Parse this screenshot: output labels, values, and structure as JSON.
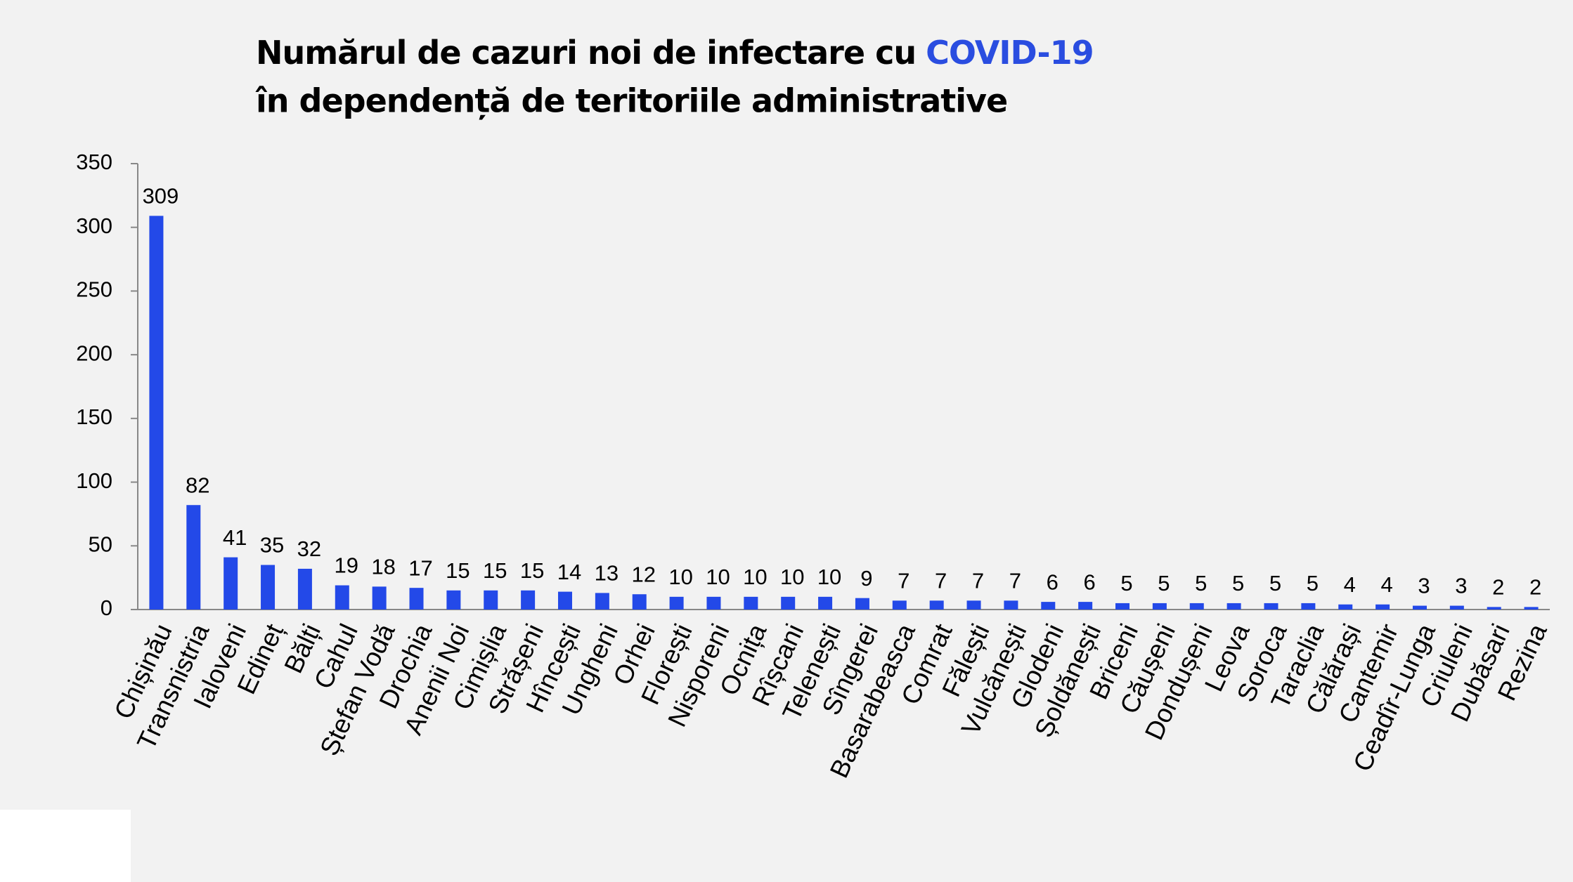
{
  "chart_data": {
    "type": "bar",
    "title": {
      "text": "Numărul de cazuri noi de infectare cu",
      "highlight": "COVID-19",
      "highlight_color": "#2a4de0"
    },
    "subtitle": "în dependență de teritoriile administrative",
    "categories": [
      "Chișinău",
      "Transnistria",
      "Ialoveni",
      "Edineț",
      "Bălți",
      "Cahul",
      "Ștefan Vodă",
      "Drochia",
      "Anenii Noi",
      "Cimișlia",
      "Strășeni",
      "Hîncești",
      "Ungheni",
      "Orhei",
      "Florești",
      "Nisporeni",
      "Ocnița",
      "Rîșcani",
      "Telenești",
      "Sîngerei",
      "Basarabeasca",
      "Comrat",
      "Fălești",
      "Vulcănești",
      "Glodeni",
      "Șoldănești",
      "Briceni",
      "Căușeni",
      "Dondușeni",
      "Leova",
      "Soroca",
      "Taraclia",
      "Călărași",
      "Cantemir",
      "Ceadîr-Lunga",
      "Criuleni",
      "Dubăsari",
      "Rezina"
    ],
    "values": [
      309,
      82,
      41,
      35,
      32,
      19,
      18,
      17,
      15,
      15,
      15,
      14,
      13,
      12,
      10,
      10,
      10,
      10,
      10,
      9,
      7,
      7,
      7,
      7,
      6,
      6,
      5,
      5,
      5,
      5,
      5,
      5,
      4,
      4,
      3,
      3,
      2,
      2
    ],
    "color": "#2349e8",
    "ylim": [
      0,
      350
    ],
    "yticks": [
      0,
      50,
      100,
      150,
      200,
      250,
      300,
      350
    ],
    "grid": false
  }
}
